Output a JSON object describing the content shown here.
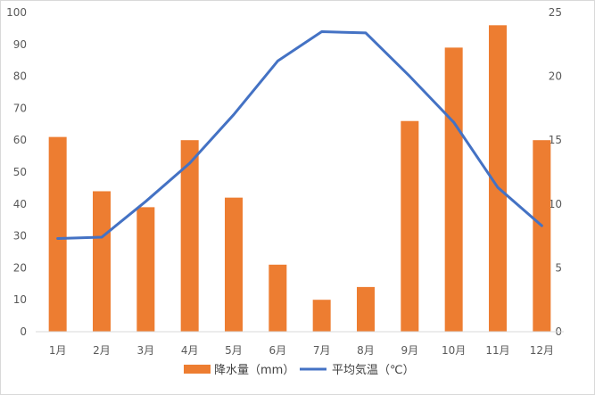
{
  "chart_data": {
    "type": "bar+line",
    "categories": [
      "1月",
      "2月",
      "3月",
      "4月",
      "5月",
      "6月",
      "7月",
      "8月",
      "9月",
      "10月",
      "11月",
      "12月"
    ],
    "series": [
      {
        "name": "降水量（mm）",
        "type": "bar",
        "axis": "left",
        "color": "#ED7D31",
        "values": [
          61,
          44,
          39,
          60,
          42,
          21,
          10,
          14,
          66,
          89,
          96,
          60
        ]
      },
      {
        "name": "平均気温（℃）",
        "type": "line",
        "axis": "right",
        "color": "#4472C4",
        "values": [
          7.3,
          7.4,
          10.2,
          13.2,
          17.0,
          21.2,
          23.5,
          23.4,
          20.0,
          16.4,
          11.3,
          8.3
        ]
      }
    ],
    "y_left": {
      "lim": [
        0,
        100
      ],
      "ticks": [
        0,
        10,
        20,
        30,
        40,
        50,
        60,
        70,
        80,
        90,
        100
      ]
    },
    "y_right": {
      "lim": [
        0,
        25
      ],
      "ticks": [
        0,
        5,
        10,
        15,
        20,
        25
      ]
    },
    "grid": false,
    "legend": "bottom"
  }
}
